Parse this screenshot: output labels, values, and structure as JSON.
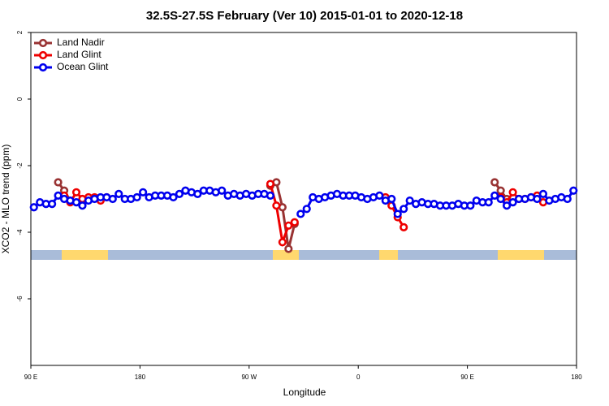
{
  "chart_data": {
    "type": "line",
    "title": "32.5S-27.5S February (Ver 10)   2015-01-01 to 2020-12-18",
    "x_label": "Longitude",
    "y_label": "XCO2 - MLO trend (ppm)",
    "xlim": [
      90,
      540
    ],
    "xticks": [
      {
        "value": 90,
        "label": "90 E"
      },
      180,
      {
        "value": 270,
        "label": "90 W"
      },
      {
        "value": 360,
        "label": "0"
      },
      {
        "value": 450,
        "label": "90 E"
      },
      {
        "value": 540,
        "label": "180"
      }
    ],
    "ylim": [
      -8,
      2
    ],
    "yticks": [
      -6,
      -4,
      -2,
      0,
      2
    ],
    "legend": "top-left",
    "series": [
      {
        "name": "Land Nadir",
        "color": "#993333",
        "x": [
          112.5,
          117.5,
          122.5,
          127.5,
          287.5,
          292.5,
          297.5,
          302.5,
          307.5,
          312.5,
          472.5,
          477.5,
          482.5
        ],
        "values": [
          -2.5,
          -2.75,
          -3.05,
          null,
          -2.6,
          -2.5,
          -3.25,
          -4.5,
          -3.75,
          null,
          -2.5,
          -2.75,
          -3.0
        ]
      },
      {
        "name": "Land Glint",
        "color": "#ee0000",
        "x": [
          117.5,
          122.5,
          127.5,
          132.5,
          137.5,
          142.5,
          147.5,
          152.5,
          157.5,
          287.5,
          292.5,
          297.5,
          302.5,
          307.5,
          312.5,
          382.5,
          387.5,
          392.5,
          397.5,
          402.5,
          477.5,
          482.5,
          487.5,
          492.5,
          497.5,
          502.5,
          507.5,
          512.5
        ],
        "values": [
          -2.9,
          -3.1,
          -2.8,
          -3.0,
          -2.95,
          -2.95,
          -3.05,
          -2.95,
          null,
          -2.55,
          -3.2,
          -4.3,
          -3.8,
          -3.7,
          null,
          -2.95,
          -3.2,
          -3.55,
          -3.85,
          null,
          -2.95,
          -3.1,
          -2.8,
          -3.0,
          -3.0,
          -2.95,
          -2.9,
          -3.1
        ]
      },
      {
        "name": "Ocean Glint",
        "color": "#0000ee",
        "x": [
          92.5,
          97.5,
          102.5,
          107.5,
          112.5,
          117.5,
          122.5,
          127.5,
          132.5,
          137.5,
          142.5,
          147.5,
          152.5,
          157.5,
          162.5,
          167.5,
          172.5,
          177.5,
          182.5,
          187.5,
          192.5,
          197.5,
          202.5,
          207.5,
          212.5,
          217.5,
          222.5,
          227.5,
          232.5,
          237.5,
          242.5,
          247.5,
          252.5,
          257.5,
          262.5,
          267.5,
          272.5,
          277.5,
          282.5,
          287.5,
          292.5,
          312.5,
          317.5,
          322.5,
          327.5,
          332.5,
          337.5,
          342.5,
          347.5,
          352.5,
          357.5,
          362.5,
          367.5,
          372.5,
          377.5,
          382.5,
          387.5,
          392.5,
          397.5,
          402.5,
          407.5,
          412.5,
          417.5,
          422.5,
          427.5,
          432.5,
          437.5,
          442.5,
          447.5,
          452.5,
          457.5,
          462.5,
          467.5,
          472.5,
          477.5,
          482.5,
          487.5,
          492.5,
          497.5,
          502.5,
          507.5,
          512.5,
          517.5,
          522.5,
          527.5,
          532.5,
          537.5
        ],
        "values": [
          -3.25,
          -3.1,
          -3.15,
          -3.15,
          -2.9,
          -3.0,
          -3.05,
          -3.1,
          -3.2,
          -3.05,
          -3.0,
          -2.95,
          -2.95,
          -3.0,
          -2.85,
          -3.0,
          -3.0,
          -2.95,
          -2.8,
          -2.95,
          -2.9,
          -2.9,
          -2.9,
          -2.95,
          -2.85,
          -2.75,
          -2.8,
          -2.85,
          -2.75,
          -2.75,
          -2.8,
          -2.75,
          -2.9,
          -2.85,
          -2.9,
          -2.85,
          -2.9,
          -2.85,
          -2.85,
          -2.9,
          null,
          -3.45,
          -3.3,
          -2.95,
          -3.0,
          -2.95,
          -2.9,
          -2.85,
          -2.9,
          -2.9,
          -2.9,
          -2.95,
          -3.0,
          -2.95,
          -2.9,
          -3.05,
          -3.0,
          -3.45,
          -3.3,
          -3.05,
          -3.15,
          -3.1,
          -3.15,
          -3.15,
          -3.2,
          -3.2,
          -3.2,
          -3.15,
          -3.2,
          -3.2,
          -3.05,
          -3.1,
          -3.1,
          -2.9,
          -3.0,
          -3.2,
          -3.1,
          -3.0,
          -3.0,
          -2.95,
          -3.0,
          -2.85,
          -3.05,
          -3.0,
          -2.95,
          -3.0,
          -2.75
        ]
      }
    ]
  }
}
